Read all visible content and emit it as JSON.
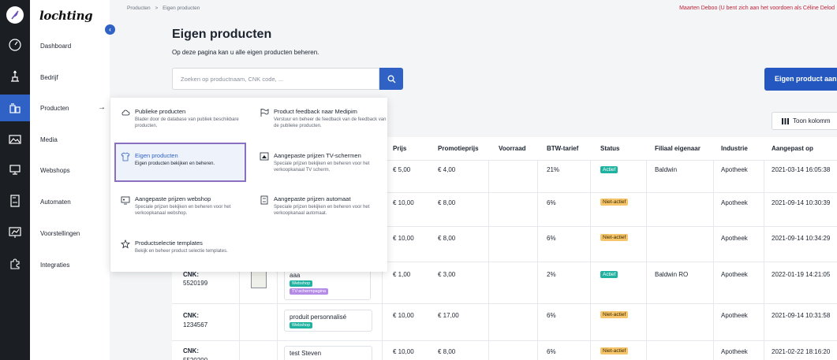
{
  "brand": {
    "name": "lochting"
  },
  "sidebar": {
    "items": [
      {
        "label": "Dashboard",
        "icon": "dashboard-icon"
      },
      {
        "label": "Bedrijf",
        "icon": "company-icon"
      },
      {
        "label": "Producten",
        "icon": "products-icon",
        "active": true
      },
      {
        "label": "Media",
        "icon": "media-icon"
      },
      {
        "label": "Webshops",
        "icon": "webshop-icon"
      },
      {
        "label": "Automaten",
        "icon": "vending-icon"
      },
      {
        "label": "Voorstellingen",
        "icon": "presentation-icon"
      },
      {
        "label": "Integraties",
        "icon": "puzzle-icon"
      }
    ],
    "collapse_glyph": "‹",
    "active_arrow": "→"
  },
  "breadcrumb": {
    "items": [
      "Producten",
      ">",
      "Eigen producten"
    ]
  },
  "impersonation_notice": "Maarten Deboo (U bent zich aan het voordoen als Céline Delod",
  "page": {
    "title": "Eigen producten",
    "subtitle": "Op deze pagina kan u alle eigen producten beheren."
  },
  "search": {
    "placeholder": "Zoeken op productnaam, CNK code, ..."
  },
  "add_button": {
    "label": "Eigen product aan"
  },
  "columns_button": {
    "label": "Toon kolomm"
  },
  "dropdown": {
    "items": [
      {
        "title": "Publieke producten",
        "desc": "Blader door de database van publiek beschikbare producten.",
        "icon": "cloud-icon"
      },
      {
        "title": "Product feedback naar Medipim",
        "desc": "Verstuur en beheer de feedback van de feedback van de publieke producten.",
        "icon": "flag-icon"
      },
      {
        "title": "Eigen producten",
        "desc": "Eigen producten bekijken en beheren.",
        "icon": "shirt-icon",
        "selected": true
      },
      {
        "title": "Aangepaste prijzen TV-schermen",
        "desc": "Speciale prijzen bekijken en beheren voor het verkoopkanaal TV scherm.",
        "icon": "tv-price-icon"
      },
      {
        "title": "Aangepaste prijzen webshop",
        "desc": "Speciale prijzen bekijken en beheren voor het verkoopkanaal webshop.",
        "icon": "webshop-price-icon"
      },
      {
        "title": "Aangepaste prijzen automaat",
        "desc": "Speciale prijzen bekijken en beheren voor het verkoopkanaal automaat.",
        "icon": "vending-price-icon"
      },
      {
        "title": "Productselectie templates",
        "desc": "Bekijk en beheer product selectie templates.",
        "icon": "star-icon"
      }
    ]
  },
  "table": {
    "columns": [
      "Prijs",
      "Promotieprijs",
      "Voorraad",
      "BTW-tarief",
      "Status",
      "Filiaal eigenaar",
      "Industrie",
      "Aangepast op"
    ],
    "rows": [
      {
        "cnk_label": "",
        "cnk": "",
        "name": "",
        "tags": [],
        "price": "€ 5,00",
        "promo": "€ 4,00",
        "stock": "",
        "vat": "21%",
        "status": "Actief",
        "branch": "Baldwin",
        "industry": "Apotheek",
        "modified": "2021-03-14 16:05:38"
      },
      {
        "cnk_label": "",
        "cnk": "",
        "name": "",
        "tags": [],
        "price": "€ 10,00",
        "promo": "€ 8,00",
        "stock": "",
        "vat": "6%",
        "status": "Niet-actief",
        "branch": "",
        "industry": "Apotheek",
        "modified": "2021-09-14 10:30:39"
      },
      {
        "cnk_label": "",
        "cnk": "",
        "name": "",
        "tags": [],
        "price": "€ 10,00",
        "promo": "€ 8,00",
        "stock": "",
        "vat": "6%",
        "status": "Niet-actief",
        "branch": "",
        "industry": "Apotheek",
        "modified": "2021-09-14 10:34:29"
      },
      {
        "cnk_label": "CNK:",
        "cnk": "5520199",
        "name": "aaa",
        "tags": [
          "Webshop",
          "TV-schermpagina"
        ],
        "price": "€ 1,00",
        "promo": "€ 3,00",
        "stock": "",
        "vat": "2%",
        "status": "Actief",
        "branch": "Baldwin RO",
        "industry": "Apotheek",
        "modified": "2022-01-19 14:21:05"
      },
      {
        "cnk_label": "CNK:",
        "cnk": "1234567",
        "name": "produit personnalisé",
        "tags": [
          "Webshop"
        ],
        "price": "€ 10,00",
        "promo": "€ 17,00",
        "stock": "",
        "vat": "6%",
        "status": "Niet-actief",
        "branch": "",
        "industry": "Apotheek",
        "modified": "2021-09-14 10:31:58"
      },
      {
        "cnk_label": "CNK:",
        "cnk": "5520200",
        "name": "test Steven",
        "tags": [],
        "price": "€ 10,00",
        "promo": "€ 8,00",
        "stock": "",
        "vat": "6%",
        "status": "Niet-actief",
        "branch": "",
        "industry": "Apotheek",
        "modified": "2021-02-22 18:16:20"
      }
    ]
  },
  "colors": {
    "accent": "#2f62c4",
    "active_badge": "#20b2a0",
    "inactive_badge": "#f5c46b",
    "impersonation": "#c0243a"
  }
}
